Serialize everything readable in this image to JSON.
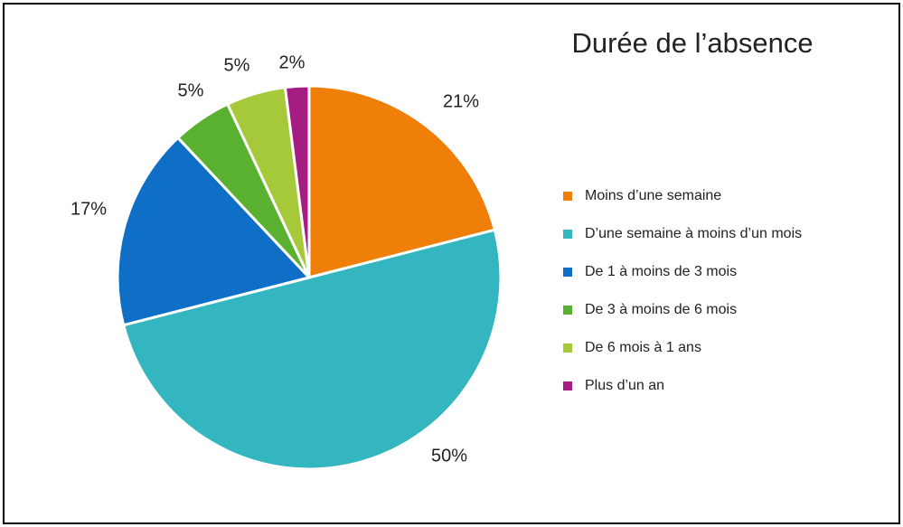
{
  "chart_data": {
    "type": "pie",
    "title": "Durée de l’absence",
    "categories": [
      "Moins d’une semaine",
      "D’une semaine à moins d’un mois",
      "De 1 à moins de 3 mois",
      "De 3 à moins de 6 mois",
      "De 6 mois à 1 ans",
      "Plus d’un an"
    ],
    "values": [
      21,
      50,
      17,
      5,
      5,
      2
    ],
    "value_labels": [
      "21%",
      "50%",
      "17%",
      "5%",
      "5%",
      "2%"
    ],
    "colors": [
      "#f07f09",
      "#33b6bf",
      "#0f6fc6",
      "#5ab12f",
      "#a6c93a",
      "#a51d83"
    ],
    "legend": "right"
  }
}
